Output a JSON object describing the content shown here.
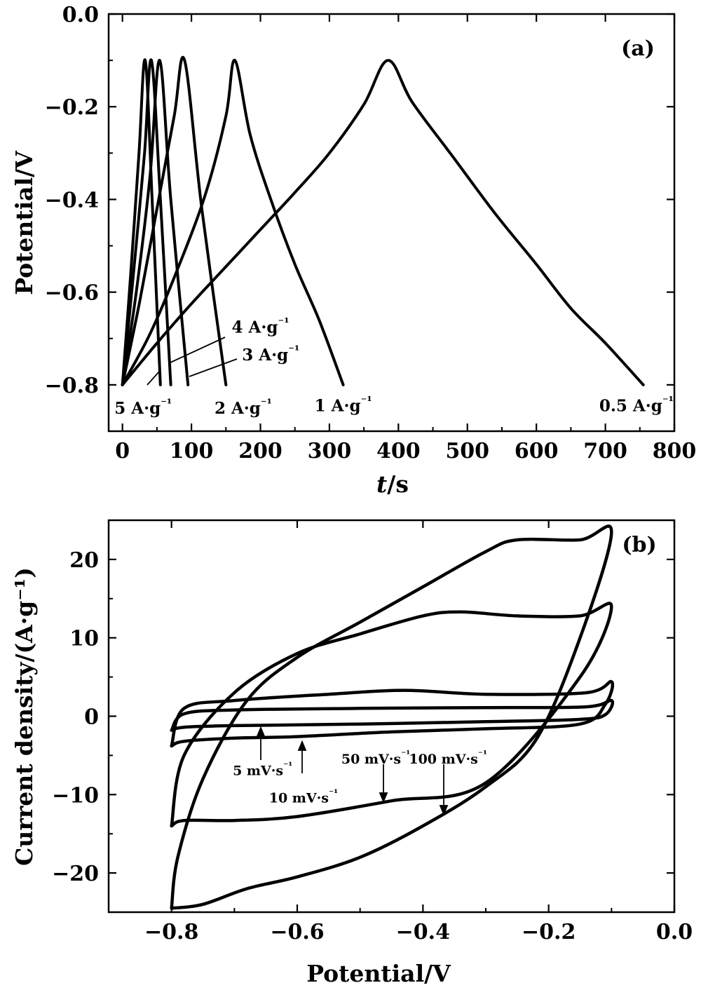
{
  "chart_data": [
    {
      "type": "line",
      "panel": "(a)",
      "xlabel_italic": "t",
      "xlabel_rest": "/s",
      "ylabel": "Potential/V",
      "xlim": [
        -20,
        800
      ],
      "ylim": [
        -0.9,
        0.0
      ],
      "xticks": [
        "0",
        "100",
        "200",
        "300",
        "400",
        "500",
        "600",
        "700",
        "800"
      ],
      "yticks": [
        "0.0",
        "−0.2",
        "−0.4",
        "−0.6",
        "−0.8"
      ],
      "grid": false,
      "series": [
        {
          "name": "0.5 A·g⁻¹",
          "x": [
            0,
            50,
            100,
            150,
            200,
            250,
            300,
            350,
            385,
            420,
            480,
            540,
            600,
            650,
            700,
            755
          ],
          "y": [
            -0.8,
            -0.71,
            -0.625,
            -0.545,
            -0.465,
            -0.385,
            -0.3,
            -0.195,
            -0.1,
            -0.19,
            -0.31,
            -0.43,
            -0.54,
            -0.635,
            -0.71,
            -0.8
          ]
        },
        {
          "name": "1 A·g⁻¹",
          "x": [
            0,
            40,
            80,
            120,
            150,
            163,
            185,
            215,
            250,
            285,
            320
          ],
          "y": [
            -0.8,
            -0.69,
            -0.55,
            -0.39,
            -0.22,
            -0.1,
            -0.26,
            -0.4,
            -0.54,
            -0.66,
            -0.8
          ]
        },
        {
          "name": "2 A·g⁻¹",
          "x": [
            0,
            25,
            50,
            75,
            90,
            115,
            150
          ],
          "y": [
            -0.8,
            -0.62,
            -0.42,
            -0.22,
            -0.1,
            -0.42,
            -0.8
          ]
        },
        {
          "name": "3 A·g⁻¹",
          "x": [
            0,
            20,
            40,
            54,
            70,
            95
          ],
          "y": [
            -0.8,
            -0.6,
            -0.35,
            -0.1,
            -0.4,
            -0.8
          ]
        },
        {
          "name": "4 A·g⁻¹",
          "x": [
            0,
            16,
            32,
            42,
            55,
            70
          ],
          "y": [
            -0.8,
            -0.56,
            -0.3,
            -0.1,
            -0.4,
            -0.8
          ]
        },
        {
          "name": "5 A·g⁻¹",
          "x": [
            0,
            12,
            24,
            33,
            43,
            55
          ],
          "y": [
            -0.8,
            -0.56,
            -0.3,
            -0.1,
            -0.4,
            -0.8
          ]
        }
      ],
      "annotations": [
        {
          "text": "0.5 A·g⁻¹",
          "x": 745,
          "y": -0.845
        },
        {
          "text": "1 A·g⁻¹",
          "x": 320,
          "y": -0.845
        },
        {
          "text": "2 A·g⁻¹",
          "x": 175,
          "y": -0.85
        },
        {
          "text": "3 A·g⁻¹",
          "x": 215,
          "y": -0.735
        },
        {
          "text": "4 A·g⁻¹",
          "x": 200,
          "y": -0.675
        },
        {
          "text": "5 A·g⁻¹",
          "x": 30,
          "y": -0.85
        }
      ]
    },
    {
      "type": "line",
      "panel": "(b)",
      "xlabel": "Potential/V",
      "ylabel": "Current density/(A·g⁻¹)",
      "xlim": [
        -0.9,
        0.0
      ],
      "ylim": [
        -25,
        25
      ],
      "xticks": [
        "−0.8",
        "−0.6",
        "−0.4",
        "−0.2",
        "0.0"
      ],
      "yticks": [
        "20",
        "10",
        "0",
        "−10",
        "−20"
      ],
      "grid": false,
      "series": [
        {
          "name": "5 mV·s⁻¹",
          "x": [
            -0.8,
            -0.78,
            -0.7,
            -0.5,
            -0.3,
            -0.14,
            -0.1,
            -0.11,
            -0.15,
            -0.3,
            -0.5,
            -0.7,
            -0.78,
            -0.8
          ],
          "y": [
            -1.8,
            0.3,
            0.8,
            1.0,
            1.1,
            1.2,
            2.0,
            0.2,
            -0.4,
            -0.7,
            -1.0,
            -1.2,
            -1.4,
            -1.8
          ]
        },
        {
          "name": "10 mV·s⁻¹",
          "x": [
            -0.8,
            -0.78,
            -0.7,
            -0.55,
            -0.43,
            -0.3,
            -0.14,
            -0.1,
            -0.11,
            -0.15,
            -0.3,
            -0.45,
            -0.6,
            -0.7,
            -0.78,
            -0.8
          ],
          "y": [
            -3.8,
            1.0,
            2.0,
            2.8,
            3.3,
            2.8,
            3.0,
            4.4,
            1.5,
            -1.0,
            -1.6,
            -2.0,
            -2.6,
            -2.8,
            -3.2,
            -3.8
          ]
        },
        {
          "name": "50 mV·s⁻¹",
          "x": [
            -0.8,
            -0.78,
            -0.7,
            -0.6,
            -0.5,
            -0.4,
            -0.34,
            -0.25,
            -0.15,
            -0.1,
            -0.15,
            -0.3,
            -0.45,
            -0.6,
            -0.7,
            -0.78,
            -0.8
          ],
          "y": [
            -14.0,
            -5.0,
            3.0,
            8.0,
            10.5,
            12.8,
            13.3,
            12.8,
            12.8,
            14.0,
            5.0,
            -8.5,
            -10.8,
            -12.8,
            -13.3,
            -13.3,
            -14.0
          ]
        },
        {
          "name": "100 mV·s⁻¹",
          "x": [
            -0.8,
            -0.79,
            -0.75,
            -0.68,
            -0.6,
            -0.5,
            -0.4,
            -0.3,
            -0.25,
            -0.15,
            -0.1,
            -0.15,
            -0.22,
            -0.3,
            -0.4,
            -0.5,
            -0.6,
            -0.68,
            -0.75,
            -0.8
          ],
          "y": [
            -24.5,
            -18.0,
            -8.0,
            2.0,
            7.5,
            12.0,
            16.5,
            21.0,
            22.5,
            22.5,
            23.5,
            10.0,
            -3.0,
            -9.0,
            -14.0,
            -18.0,
            -20.5,
            -22.0,
            -24.0,
            -24.5
          ]
        }
      ],
      "annotations": [
        {
          "text": "5 mV·s⁻¹",
          "x": -0.655,
          "y": -6.8
        },
        {
          "text": "10 mV·s⁻¹",
          "x": -0.59,
          "y": -10.3
        },
        {
          "text": "50 mV·s⁻¹",
          "x": -0.475,
          "y": -5.3
        },
        {
          "text": "100 mV·s⁻¹",
          "x": -0.36,
          "y": -5.3
        }
      ]
    }
  ]
}
